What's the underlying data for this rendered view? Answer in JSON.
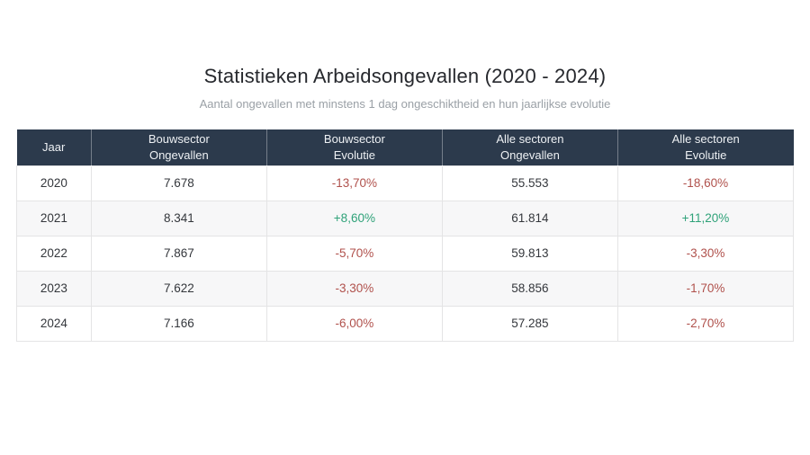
{
  "page": {
    "title": "Statistieken Arbeidsongevallen (2020 - 2024)",
    "subtitle": "Aantal ongevallen met minstens 1 dag ongeschiktheid en hun jaarlijkse evolutie"
  },
  "colors": {
    "header_bg": "#2c3a4c",
    "negative": "#b0514c",
    "positive": "#2fa279",
    "row_alt_bg": "#f7f7f8",
    "border": "#e4e4e5"
  },
  "chart_data": {
    "type": "table",
    "title": "Statistieken Arbeidsongevallen (2020 - 2024)",
    "subtitle": "Aantal ongevallen met minstens 1 dag ongeschiktheid en hun jaarlijkse evolutie",
    "columns": [
      {
        "line1": "Jaar",
        "line2": ""
      },
      {
        "line1": "Bouwsector",
        "line2": "Ongevallen"
      },
      {
        "line1": "Bouwsector",
        "line2": "Evolutie"
      },
      {
        "line1": "Alle sectoren",
        "line2": "Ongevallen"
      },
      {
        "line1": "Alle sectoren",
        "line2": "Evolutie"
      }
    ],
    "rows": [
      {
        "year": "2020",
        "bouw_ongevallen": "7.678",
        "bouw_evolutie": "-13,70%",
        "alle_ongevallen": "55.553",
        "alle_evolutie": "-18,60%"
      },
      {
        "year": "2021",
        "bouw_ongevallen": "8.341",
        "bouw_evolutie": "+8,60%",
        "alle_ongevallen": "61.814",
        "alle_evolutie": "+11,20%"
      },
      {
        "year": "2022",
        "bouw_ongevallen": "7.867",
        "bouw_evolutie": "-5,70%",
        "alle_ongevallen": "59.813",
        "alle_evolutie": "-3,30%"
      },
      {
        "year": "2023",
        "bouw_ongevallen": "7.622",
        "bouw_evolutie": "-3,30%",
        "alle_ongevallen": "58.856",
        "alle_evolutie": "-1,70%"
      },
      {
        "year": "2024",
        "bouw_ongevallen": "7.166",
        "bouw_evolutie": "-6,00%",
        "alle_ongevallen": "57.285",
        "alle_evolutie": "-2,70%"
      }
    ],
    "series_numeric": {
      "years": [
        2020,
        2021,
        2022,
        2023,
        2024
      ],
      "bouwsector_ongevallen": [
        7678,
        8341,
        7867,
        7622,
        7166
      ],
      "bouwsector_evolutie_pct": [
        -13.7,
        8.6,
        -5.7,
        -3.3,
        -6.0
      ],
      "alle_sectoren_ongevallen": [
        55553,
        61814,
        59813,
        58856,
        57285
      ],
      "alle_sectoren_evolutie_pct": [
        -18.6,
        11.2,
        -3.3,
        -1.7,
        -2.7
      ]
    }
  }
}
